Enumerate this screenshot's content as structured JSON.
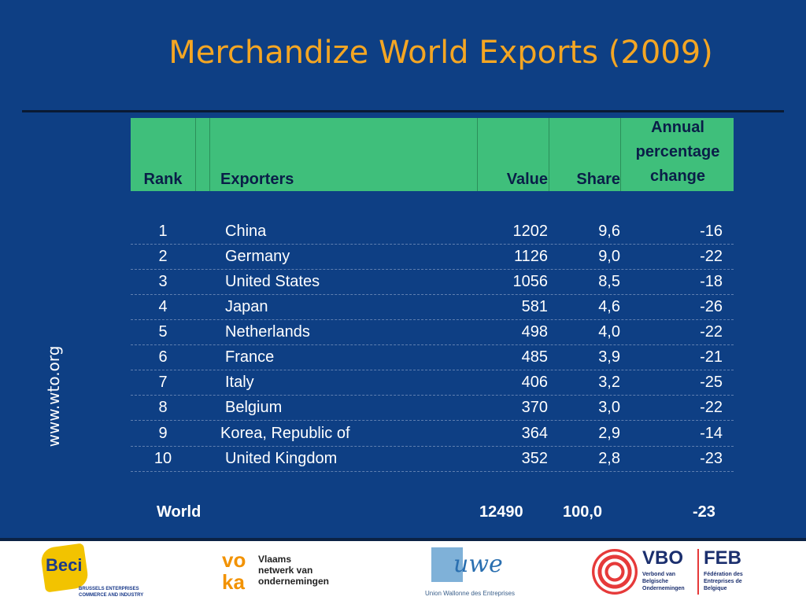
{
  "slide": {
    "title": "Merchandize World Exports (2009)",
    "side_label": "www.wto.org"
  },
  "table": {
    "headers": {
      "rank": "Rank",
      "exporters": "Exporters",
      "value": "Value",
      "share": "Share",
      "annual_line1": "Annual",
      "annual_line2": "percentage",
      "annual_line3": "change"
    },
    "rows": [
      {
        "rank": "1",
        "exporter": "China",
        "value": "1202",
        "share": "9,6",
        "change": "-16"
      },
      {
        "rank": "2",
        "exporter": "Germany",
        "value": "1126",
        "share": "9,0",
        "change": "-22"
      },
      {
        "rank": "3",
        "exporter": "United States",
        "value": "1056",
        "share": "8,5",
        "change": "-18"
      },
      {
        "rank": "4",
        "exporter": "Japan",
        "value": "581",
        "share": "4,6",
        "change": "-26"
      },
      {
        "rank": "5",
        "exporter": "Netherlands",
        "value": "498",
        "share": "4,0",
        "change": "-22"
      },
      {
        "rank": "6",
        "exporter": "France",
        "value": "485",
        "share": "3,9",
        "change": "-21"
      },
      {
        "rank": "7",
        "exporter": "Italy",
        "value": "406",
        "share": "3,2",
        "change": "-25"
      },
      {
        "rank": "8",
        "exporter": "Belgium",
        "value": "370",
        "share": "3,0",
        "change": "-22"
      },
      {
        "rank": "9",
        "exporter": "Korea, Republic of",
        "value": "364",
        "share": "2,9",
        "change": "-14"
      },
      {
        "rank": "10",
        "exporter": "United Kingdom",
        "value": "352",
        "share": "2,8",
        "change": "-23"
      }
    ],
    "world": {
      "label": "World",
      "value": "12490",
      "share": "100,0",
      "change": "-23"
    }
  },
  "logos": {
    "beci": {
      "name": "Beci",
      "line1": "BRUSSELS ENTERPRISES",
      "line2": "COMMERCE AND INDUSTRY"
    },
    "voka": {
      "mark_top": "vo",
      "mark_bottom": "ka",
      "line1": "Vlaams",
      "line2": "netwerk van",
      "line3": "ondernemingen"
    },
    "uwe": {
      "name": "uwe",
      "caption": "Union Wallonne des Entreprises"
    },
    "vbo_feb": {
      "left_name": "VBO",
      "right_name": "FEB",
      "left_line1": "Verbond van",
      "left_line2": "Belgische",
      "left_line3": "Ondernemingen",
      "right_line1": "Fédération des",
      "right_line2": "Entreprises de",
      "right_line3": "Belgique"
    }
  },
  "colors": {
    "background": "#0e3f84",
    "title": "#f4a623",
    "header_fill": "#3fbf7b",
    "header_text": "#0a1e48"
  }
}
